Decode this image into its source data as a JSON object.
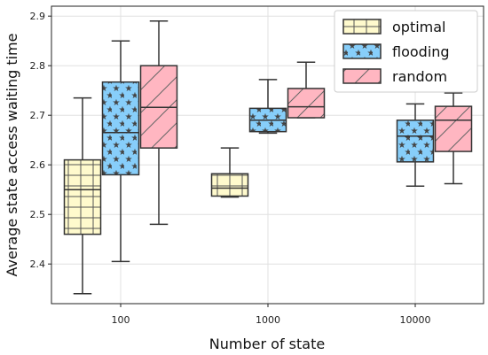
{
  "chart_data": {
    "type": "box",
    "xlabel": "Number of state",
    "ylabel": "Average state access waiting time",
    "categories": [
      "100",
      "1000",
      "10000"
    ],
    "ylim": [
      2.32,
      2.92
    ],
    "yticks": [
      2.4,
      2.5,
      2.6,
      2.7,
      2.8,
      2.9
    ],
    "grid": true,
    "legend_position": "top-right",
    "series": [
      {
        "name": "optimal",
        "color": "#fffacd",
        "pattern": "grid",
        "boxes": [
          {
            "whisker_low": 2.34,
            "q1": 2.46,
            "median": 2.55,
            "q3": 2.61,
            "whisker_high": 2.735
          },
          {
            "whisker_low": 2.535,
            "q1": 2.537,
            "median": 2.553,
            "q3": 2.582,
            "whisker_high": 2.634
          },
          null
        ]
      },
      {
        "name": "flooding",
        "color": "#87cefa",
        "pattern": "stars",
        "boxes": [
          {
            "whisker_low": 2.405,
            "q1": 2.58,
            "median": 2.665,
            "q3": 2.767,
            "whisker_high": 2.85
          },
          {
            "whisker_low": 2.664,
            "q1": 2.667,
            "median": 2.69,
            "q3": 2.714,
            "whisker_high": 2.772
          },
          {
            "whisker_low": 2.557,
            "q1": 2.606,
            "median": 2.658,
            "q3": 2.69,
            "whisker_high": 2.723
          }
        ]
      },
      {
        "name": "random",
        "color": "#ffb6c1",
        "pattern": "diagonal",
        "boxes": [
          {
            "whisker_low": 2.48,
            "q1": 2.634,
            "median": 2.716,
            "q3": 2.8,
            "whisker_high": 2.89
          },
          {
            "whisker_low": 2.695,
            "q1": 2.695,
            "median": 2.717,
            "q3": 2.754,
            "whisker_high": 2.807
          },
          {
            "whisker_low": 2.562,
            "q1": 2.627,
            "median": 2.69,
            "q3": 2.718,
            "whisker_high": 2.745
          }
        ]
      }
    ]
  }
}
